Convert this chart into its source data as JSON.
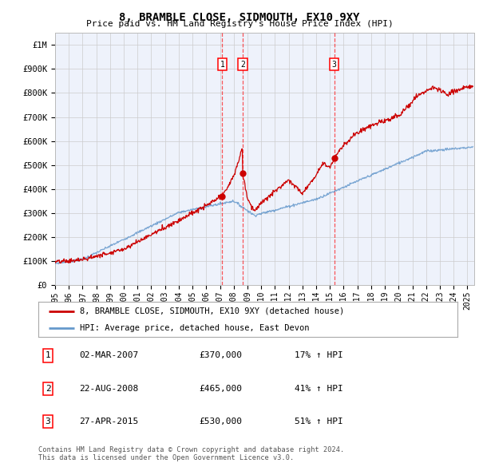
{
  "title": "8, BRAMBLE CLOSE, SIDMOUTH, EX10 9XY",
  "subtitle": "Price paid vs. HM Land Registry's House Price Index (HPI)",
  "ylabel_ticks": [
    "£0",
    "£100K",
    "£200K",
    "£300K",
    "£400K",
    "£500K",
    "£600K",
    "£700K",
    "£800K",
    "£900K",
    "£1M"
  ],
  "ytick_values": [
    0,
    100000,
    200000,
    300000,
    400000,
    500000,
    600000,
    700000,
    800000,
    900000,
    1000000
  ],
  "ylim": [
    0,
    1050000
  ],
  "xlim_start": 1995.0,
  "xlim_end": 2025.5,
  "transactions": [
    {
      "date_num": 2007.17,
      "price": 370000,
      "label": "1"
    },
    {
      "date_num": 2008.65,
      "price": 465000,
      "label": "2"
    },
    {
      "date_num": 2015.32,
      "price": 530000,
      "label": "3"
    }
  ],
  "legend_entries": [
    {
      "label": "8, BRAMBLE CLOSE, SIDMOUTH, EX10 9XY (detached house)",
      "color": "#cc0000"
    },
    {
      "label": "HPI: Average price, detached house, East Devon",
      "color": "#6699cc"
    }
  ],
  "table_rows": [
    {
      "num": "1",
      "date": "02-MAR-2007",
      "price": "£370,000",
      "hpi": "17% ↑ HPI"
    },
    {
      "num": "2",
      "date": "22-AUG-2008",
      "price": "£465,000",
      "hpi": "41% ↑ HPI"
    },
    {
      "num": "3",
      "date": "27-APR-2015",
      "price": "£530,000",
      "hpi": "51% ↑ HPI"
    }
  ],
  "footer": "Contains HM Land Registry data © Crown copyright and database right 2024.\nThis data is licensed under the Open Government Licence v3.0.",
  "background_color": "#ffffff",
  "grid_color": "#cccccc",
  "plot_bg_color": "#eef2fb"
}
